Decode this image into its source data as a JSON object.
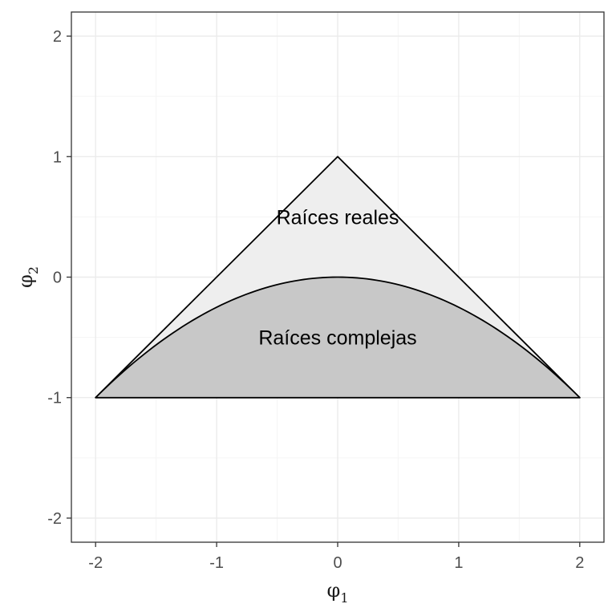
{
  "chart_data": {
    "type": "area",
    "title": "",
    "xlabel": "φ",
    "xlabel_subscript": "1",
    "ylabel": "φ",
    "ylabel_subscript": "2",
    "xlim": [
      -2.2,
      2.2
    ],
    "ylim": [
      -2.2,
      2.2
    ],
    "x_ticks": [
      -2,
      -1,
      0,
      1,
      2
    ],
    "x_tick_labels": [
      "-2",
      "-1",
      "0",
      "1",
      "2"
    ],
    "y_ticks": [
      -2,
      -1,
      0,
      1,
      2
    ],
    "y_tick_labels": [
      "-2",
      "-1",
      "0",
      "1",
      "2"
    ],
    "grid": true,
    "regions": [
      {
        "label": "Raíces reales",
        "shape": "triangle",
        "vertices": [
          [
            -2,
            -1
          ],
          [
            0,
            1
          ],
          [
            2,
            -1
          ]
        ],
        "fill": "#eeeeee",
        "label_pos": [
          0,
          0.5
        ]
      },
      {
        "label": "Raíces complejas",
        "shape": "parabola",
        "equation": "phi2 = -phi1^2/4",
        "x_range": [
          -2,
          2
        ],
        "fill": "#c8c8c8",
        "label_pos": [
          0,
          -0.5
        ]
      }
    ],
    "colors": {
      "panel_border": "#333333",
      "grid_major": "#ebebeb",
      "grid_minor": "#f5f5f5",
      "outline": "#000000"
    }
  }
}
